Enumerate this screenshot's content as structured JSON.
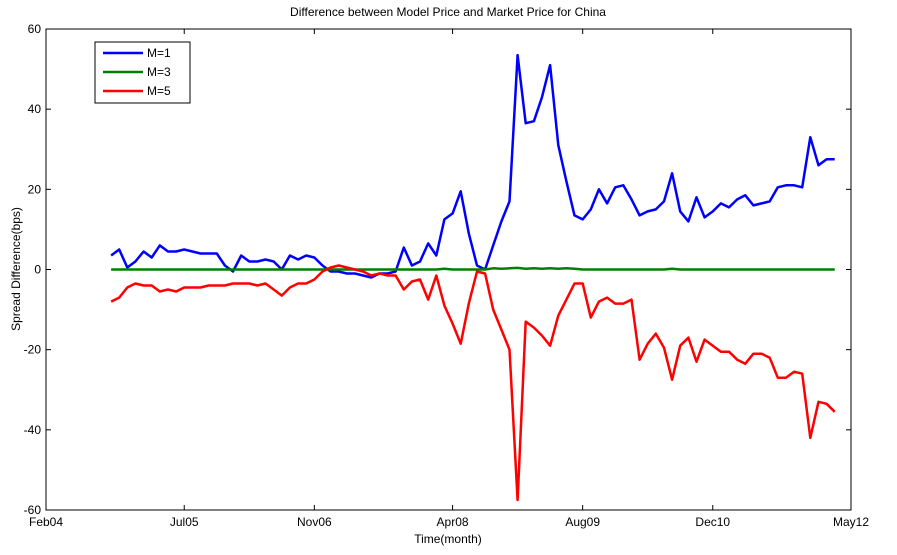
{
  "chart_data": {
    "type": "line",
    "title": "Difference between Model Price and Market Price for China",
    "x_label": "Time(month)",
    "y_label": "Spread Difference(bps)",
    "x": [
      "Oct04",
      "Nov04",
      "Dec04",
      "Jan05",
      "Feb05",
      "Mar05",
      "Apr05",
      "May05",
      "Jun05",
      "Jul05",
      "Aug05",
      "Sep05",
      "Oct05",
      "Nov05",
      "Dec05",
      "Jan06",
      "Feb06",
      "Mar06",
      "Apr06",
      "May06",
      "Jun06",
      "Jul06",
      "Aug06",
      "Sep06",
      "Oct06",
      "Nov06",
      "Dec06",
      "Jan07",
      "Feb07",
      "Mar07",
      "Apr07",
      "May07",
      "Jun07",
      "Jul07",
      "Aug07",
      "Sep07",
      "Oct07",
      "Nov07",
      "Dec07",
      "Jan08",
      "Feb08",
      "Mar08",
      "Apr08",
      "May08",
      "Jun08",
      "Jul08",
      "Aug08",
      "Sep08",
      "Oct08",
      "Nov08",
      "Dec08",
      "Jan09",
      "Feb09",
      "Mar09",
      "Apr09",
      "May09",
      "Jun09",
      "Jul09",
      "Aug09",
      "Sep09",
      "Oct09",
      "Nov09",
      "Dec09",
      "Jan10",
      "Feb10",
      "Mar10",
      "Apr10",
      "May10",
      "Jun10",
      "Jul10",
      "Aug10",
      "Sep10",
      "Oct10",
      "Nov10",
      "Dec10",
      "Jan11",
      "Feb11",
      "Mar11",
      "Apr11",
      "May11",
      "Jun11",
      "Jul11",
      "Aug11",
      "Sep11",
      "Oct11",
      "Nov11",
      "Dec11",
      "Jan12",
      "Feb12",
      "Mar12"
    ],
    "series": [
      {
        "name": "M=1",
        "color": "#0000ff",
        "values": [
          3.5,
          5,
          0.5,
          2,
          4.5,
          3,
          6,
          4.5,
          4.5,
          5,
          4.5,
          4,
          4,
          4,
          1,
          -0.5,
          3.5,
          2,
          2,
          2.5,
          2,
          0,
          3.5,
          2.5,
          3.5,
          3,
          1,
          -0.5,
          -0.5,
          -1,
          -1,
          -1.5,
          -2,
          -1,
          -1,
          -0.5,
          5.5,
          1,
          2,
          6.5,
          3.5,
          12.5,
          14,
          19.5,
          9,
          1,
          0,
          6,
          12,
          17,
          53.5,
          36.5,
          37,
          43,
          51,
          31,
          22,
          13.5,
          12.5,
          15,
          20,
          16.5,
          20.5,
          21,
          17.5,
          13.5,
          14.5,
          15,
          17,
          24,
          14.5,
          12,
          18,
          13,
          14.5,
          16.5,
          15.5,
          17.5,
          18.5,
          16,
          16.5,
          17,
          20.5,
          21,
          21,
          20.5,
          33,
          26,
          27.5,
          27.5
        ]
      },
      {
        "name": "M=3",
        "color": "#008000",
        "values": [
          0,
          0,
          0,
          0,
          0,
          0,
          0,
          0,
          0,
          0,
          0,
          0,
          0,
          0,
          0,
          0,
          0,
          0,
          0,
          0,
          0,
          0,
          0,
          0,
          0,
          0,
          0,
          0,
          0,
          0,
          0,
          0,
          0,
          0,
          0,
          0,
          0,
          0,
          0,
          0,
          0,
          0.2,
          0,
          0,
          0,
          0,
          0,
          0.3,
          0.2,
          0.3,
          0.4,
          0.2,
          0.3,
          0.2,
          0.3,
          0.2,
          0.3,
          0.2,
          0,
          0,
          0,
          0,
          0,
          0,
          0,
          0,
          0,
          0,
          0,
          0.2,
          0,
          0,
          0,
          0,
          0,
          0,
          0,
          0,
          0,
          0,
          0,
          0,
          0,
          0,
          0,
          0,
          0,
          0,
          0,
          0
        ]
      },
      {
        "name": "M=5",
        "color": "#ff0000",
        "values": [
          -8,
          -7,
          -4.5,
          -3.5,
          -4,
          -4,
          -5.5,
          -5,
          -5.5,
          -4.5,
          -4.5,
          -4.5,
          -4,
          -4,
          -4,
          -3.5,
          -3.5,
          -3.5,
          -4,
          -3.5,
          -5,
          -6.5,
          -4.5,
          -3.5,
          -3.5,
          -2.5,
          -0.5,
          0.5,
          1,
          0.5,
          0,
          -0.5,
          -1.5,
          -1,
          -1.5,
          -1.5,
          -5,
          -3,
          -2.5,
          -7.5,
          -1.5,
          -9,
          -13.5,
          -18.5,
          -8.5,
          -0.5,
          -1,
          -10,
          -15,
          -20,
          -57.5,
          -13,
          -14.5,
          -16.5,
          -19,
          -11.5,
          -7.5,
          -3.5,
          -3.5,
          -12,
          -8,
          -7,
          -8.5,
          -8.5,
          -7.5,
          -22.5,
          -18.5,
          -16,
          -19.5,
          -27.5,
          -19,
          -17,
          -23,
          -17.5,
          -19,
          -20.5,
          -20.5,
          -22.5,
          -23.5,
          -21,
          -21,
          -22,
          -27,
          -27,
          -25.5,
          -26,
          -42,
          -33,
          -33.5,
          -35.5
        ]
      }
    ],
    "xlim": [
      "Feb04",
      "May12"
    ],
    "xticks": [
      "Feb04",
      "Jul05",
      "Nov06",
      "Apr08",
      "Aug09",
      "Dec10",
      "May12"
    ],
    "ylim": [
      -60,
      60
    ],
    "yticks": [
      -60,
      -40,
      -20,
      0,
      20,
      40,
      60
    ],
    "legend": "upper left"
  }
}
